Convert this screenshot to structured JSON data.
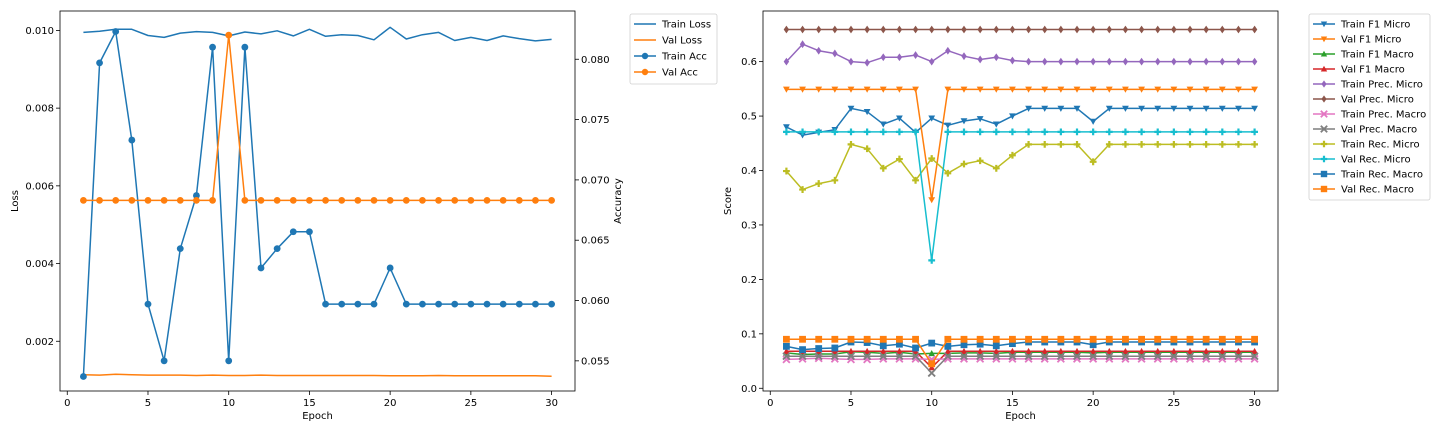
{
  "chart_data": [
    {
      "type": "line",
      "xlabel": "Epoch",
      "ylabel": "Loss",
      "y2label": "Accuracy",
      "xlim": [
        -0.45,
        31.45
      ],
      "ylim": [
        0.00072,
        0.0105
      ],
      "y2lim": [
        0.0525,
        0.084
      ],
      "xticks": [
        0,
        5,
        10,
        15,
        20,
        25,
        30
      ],
      "yticks": [
        0.002,
        0.004,
        0.006,
        0.008,
        0.01
      ],
      "y2ticks": [
        0.055,
        0.06,
        0.065,
        0.07,
        0.075,
        0.08
      ],
      "legend_position": "outside-right",
      "x": [
        1,
        2,
        3,
        4,
        5,
        6,
        7,
        8,
        9,
        10,
        11,
        12,
        13,
        14,
        15,
        16,
        17,
        18,
        19,
        20,
        21,
        22,
        23,
        24,
        25,
        26,
        27,
        28,
        29,
        30
      ],
      "series": [
        {
          "name": "Train Loss",
          "axis": "left",
          "color": "#1f77b4",
          "marker": "none",
          "values": [
            0.00995,
            0.00998,
            0.01003,
            0.01003,
            0.00987,
            0.00982,
            0.00993,
            0.00997,
            0.00995,
            0.00986,
            0.00996,
            0.00991,
            0.00999,
            0.00986,
            0.01003,
            0.00985,
            0.00989,
            0.00987,
            0.00976,
            0.01008,
            0.00978,
            0.00989,
            0.00995,
            0.00974,
            0.00982,
            0.00974,
            0.00986,
            0.00979,
            0.00973,
            0.00977
          ]
        },
        {
          "name": "Val Loss",
          "axis": "left",
          "color": "#ff7f0e",
          "marker": "none",
          "values": [
            0.00114,
            0.00113,
            0.00115,
            0.00114,
            0.00113,
            0.00113,
            0.00113,
            0.00112,
            0.00113,
            0.00112,
            0.00112,
            0.00113,
            0.00112,
            0.00112,
            0.00112,
            0.00112,
            0.00112,
            0.00112,
            0.00112,
            0.00111,
            0.00111,
            0.00111,
            0.00112,
            0.00111,
            0.00111,
            0.00111,
            0.00111,
            0.00111,
            0.00111,
            0.0011
          ]
        },
        {
          "name": "Train Acc",
          "axis": "right",
          "color": "#1f77b4",
          "marker": "circle",
          "values": [
            0.0537,
            0.0797,
            0.0823,
            0.0733,
            0.0597,
            0.055,
            0.0643,
            0.0687,
            0.081,
            0.055,
            0.081,
            0.0627,
            0.0643,
            0.0657,
            0.0657,
            0.0597,
            0.0597,
            0.0597,
            0.0597,
            0.0627,
            0.0597,
            0.0597,
            0.0597,
            0.0597,
            0.0597,
            0.0597,
            0.0597,
            0.0597,
            0.0597,
            0.0597
          ]
        },
        {
          "name": "Val Acc",
          "axis": "right",
          "color": "#ff7f0e",
          "marker": "circle",
          "values": [
            0.0683,
            0.0683,
            0.0683,
            0.0683,
            0.0683,
            0.0683,
            0.0683,
            0.0683,
            0.0683,
            0.082,
            0.0683,
            0.0683,
            0.0683,
            0.0683,
            0.0683,
            0.0683,
            0.0683,
            0.0683,
            0.0683,
            0.0683,
            0.0683,
            0.0683,
            0.0683,
            0.0683,
            0.0683,
            0.0683,
            0.0683,
            0.0683,
            0.0683,
            0.0683
          ]
        }
      ]
    },
    {
      "type": "line",
      "xlabel": "Epoch",
      "ylabel": "Score",
      "xlim": [
        -0.45,
        31.45
      ],
      "ylim": [
        -0.005,
        0.693
      ],
      "xticks": [
        0,
        5,
        10,
        15,
        20,
        25,
        30
      ],
      "yticks": [
        0.0,
        0.1,
        0.2,
        0.3,
        0.4,
        0.5,
        0.6
      ],
      "legend_position": "outside-right",
      "x": [
        1,
        2,
        3,
        4,
        5,
        6,
        7,
        8,
        9,
        10,
        11,
        12,
        13,
        14,
        15,
        16,
        17,
        18,
        19,
        20,
        21,
        22,
        23,
        24,
        25,
        26,
        27,
        28,
        29,
        30
      ],
      "series": [
        {
          "name": "Train F1 Micro",
          "color": "#1f77b4",
          "marker": "triangle_down",
          "values": [
            0.48,
            0.465,
            0.47,
            0.475,
            0.514,
            0.508,
            0.485,
            0.496,
            0.47,
            0.496,
            0.483,
            0.491,
            0.495,
            0.485,
            0.5,
            0.514,
            0.514,
            0.514,
            0.514,
            0.49,
            0.514,
            0.514,
            0.514,
            0.514,
            0.514,
            0.514,
            0.514,
            0.514,
            0.514,
            0.514
          ]
        },
        {
          "name": "Val F1 Micro",
          "color": "#ff7f0e",
          "marker": "triangle_down",
          "values": [
            0.549,
            0.549,
            0.549,
            0.549,
            0.549,
            0.549,
            0.549,
            0.549,
            0.549,
            0.346,
            0.549,
            0.549,
            0.549,
            0.549,
            0.549,
            0.549,
            0.549,
            0.549,
            0.549,
            0.549,
            0.549,
            0.549,
            0.549,
            0.549,
            0.549,
            0.549,
            0.549,
            0.549,
            0.549,
            0.549
          ]
        },
        {
          "name": "Train F1 Macro",
          "color": "#2ca02c",
          "marker": "triangle_up",
          "values": [
            0.065,
            0.062,
            0.063,
            0.063,
            0.067,
            0.066,
            0.064,
            0.066,
            0.063,
            0.064,
            0.064,
            0.065,
            0.065,
            0.064,
            0.066,
            0.066,
            0.066,
            0.066,
            0.066,
            0.065,
            0.066,
            0.066,
            0.066,
            0.066,
            0.066,
            0.066,
            0.066,
            0.066,
            0.066,
            0.066
          ]
        },
        {
          "name": "Val F1 Macro",
          "color": "#d62728",
          "marker": "triangle_up",
          "values": [
            0.068,
            0.068,
            0.068,
            0.068,
            0.068,
            0.068,
            0.068,
            0.068,
            0.068,
            0.038,
            0.068,
            0.068,
            0.068,
            0.068,
            0.068,
            0.068,
            0.068,
            0.068,
            0.068,
            0.068,
            0.068,
            0.068,
            0.068,
            0.068,
            0.068,
            0.068,
            0.068,
            0.068,
            0.068,
            0.068
          ]
        },
        {
          "name": "Train Prec. Micro",
          "color": "#9467bd",
          "marker": "diamond",
          "values": [
            0.6,
            0.632,
            0.62,
            0.615,
            0.6,
            0.598,
            0.608,
            0.608,
            0.612,
            0.6,
            0.62,
            0.61,
            0.604,
            0.608,
            0.602,
            0.6,
            0.6,
            0.6,
            0.6,
            0.6,
            0.6,
            0.6,
            0.6,
            0.6,
            0.6,
            0.6,
            0.6,
            0.6,
            0.6,
            0.6
          ]
        },
        {
          "name": "Val Prec. Micro",
          "color": "#8c564b",
          "marker": "diamond",
          "values": [
            0.659,
            0.659,
            0.659,
            0.659,
            0.659,
            0.659,
            0.659,
            0.659,
            0.659,
            0.659,
            0.659,
            0.659,
            0.659,
            0.659,
            0.659,
            0.659,
            0.659,
            0.659,
            0.659,
            0.659,
            0.659,
            0.659,
            0.659,
            0.659,
            0.659,
            0.659,
            0.659,
            0.659,
            0.659,
            0.659
          ]
        },
        {
          "name": "Train Prec. Macro",
          "color": "#e377c2",
          "marker": "x",
          "values": [
            0.053,
            0.054,
            0.055,
            0.054,
            0.053,
            0.053,
            0.054,
            0.054,
            0.054,
            0.053,
            0.054,
            0.054,
            0.054,
            0.054,
            0.054,
            0.054,
            0.054,
            0.054,
            0.054,
            0.054,
            0.054,
            0.054,
            0.054,
            0.054,
            0.054,
            0.054,
            0.054,
            0.054,
            0.054,
            0.054
          ]
        },
        {
          "name": "Val Prec. Macro",
          "color": "#7f7f7f",
          "marker": "x",
          "values": [
            0.059,
            0.059,
            0.059,
            0.059,
            0.059,
            0.059,
            0.059,
            0.059,
            0.059,
            0.028,
            0.059,
            0.059,
            0.059,
            0.059,
            0.059,
            0.059,
            0.059,
            0.059,
            0.059,
            0.059,
            0.059,
            0.059,
            0.059,
            0.059,
            0.059,
            0.059,
            0.059,
            0.059,
            0.059,
            0.059
          ]
        },
        {
          "name": "Train Rec. Micro",
          "color": "#bcbd22",
          "marker": "plus",
          "values": [
            0.399,
            0.365,
            0.376,
            0.382,
            0.448,
            0.44,
            0.404,
            0.421,
            0.382,
            0.422,
            0.395,
            0.412,
            0.418,
            0.404,
            0.428,
            0.448,
            0.448,
            0.448,
            0.448,
            0.416,
            0.448,
            0.448,
            0.448,
            0.448,
            0.448,
            0.448,
            0.448,
            0.448,
            0.448,
            0.448
          ]
        },
        {
          "name": "Val Rec. Micro",
          "color": "#17becf",
          "marker": "plus",
          "values": [
            0.471,
            0.471,
            0.471,
            0.471,
            0.471,
            0.471,
            0.471,
            0.471,
            0.471,
            0.235,
            0.471,
            0.471,
            0.471,
            0.471,
            0.471,
            0.471,
            0.471,
            0.471,
            0.471,
            0.471,
            0.471,
            0.471,
            0.471,
            0.471,
            0.471,
            0.471,
            0.471,
            0.471,
            0.471,
            0.471
          ]
        },
        {
          "name": "Train Rec. Macro",
          "color": "#1f77b4",
          "marker": "square",
          "values": [
            0.077,
            0.071,
            0.073,
            0.074,
            0.085,
            0.084,
            0.078,
            0.081,
            0.074,
            0.083,
            0.077,
            0.08,
            0.081,
            0.078,
            0.082,
            0.085,
            0.085,
            0.085,
            0.085,
            0.08,
            0.085,
            0.085,
            0.085,
            0.085,
            0.085,
            0.085,
            0.085,
            0.085,
            0.085,
            0.085
          ]
        },
        {
          "name": "Val Rec. Macro",
          "color": "#ff7f0e",
          "marker": "square",
          "values": [
            0.09,
            0.09,
            0.09,
            0.09,
            0.09,
            0.09,
            0.09,
            0.09,
            0.09,
            0.045,
            0.09,
            0.09,
            0.09,
            0.09,
            0.09,
            0.09,
            0.09,
            0.09,
            0.09,
            0.09,
            0.09,
            0.09,
            0.09,
            0.09,
            0.09,
            0.09,
            0.09,
            0.09,
            0.09,
            0.09
          ]
        }
      ]
    }
  ]
}
